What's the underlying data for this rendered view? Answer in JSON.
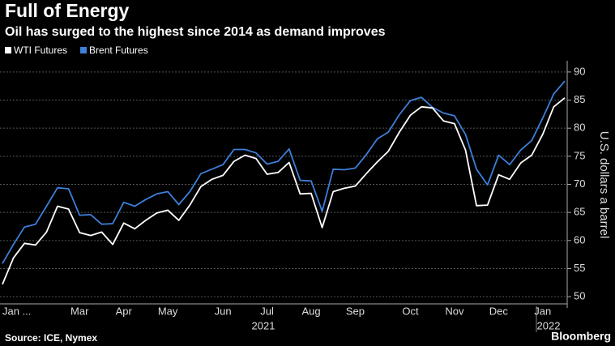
{
  "chart_data": {
    "type": "line",
    "title": "Full of Energy",
    "subtitle": "Oil has surged to the highest since 2014 as demand improves",
    "y_axis_label": "U.S. dollars a barrel",
    "source": "Source: ICE, Nymex",
    "brand": "Bloomberg",
    "years": [
      "2021",
      "2022"
    ],
    "categories": [
      "Jan ...",
      null,
      null,
      null,
      null,
      null,
      null,
      "Mar",
      null,
      null,
      null,
      "Apr",
      null,
      null,
      null,
      "May",
      null,
      null,
      null,
      null,
      "Jun",
      null,
      null,
      null,
      "Jul",
      null,
      null,
      null,
      "Aug",
      null,
      null,
      null,
      "Sep",
      null,
      null,
      null,
      null,
      "Oct",
      null,
      null,
      null,
      "Nov",
      null,
      null,
      null,
      "Dec",
      null,
      null,
      null,
      "Jan",
      null,
      null
    ],
    "series": [
      {
        "name": "WTI Futures",
        "color": "#ffffff",
        "values": [
          52.2,
          56.9,
          59.5,
          59.2,
          61.5,
          66.1,
          65.6,
          61.4,
          60.9,
          61.5,
          59.3,
          63.1,
          62.1,
          63.6,
          64.9,
          65.4,
          63.6,
          66.3,
          69.6,
          70.9,
          71.6,
          74.1,
          75.2,
          74.6,
          71.8,
          72.1,
          73.9,
          68.3,
          68.4,
          62.3,
          68.7,
          69.3,
          69.7,
          71.9,
          74.0,
          75.9,
          79.3,
          82.3,
          83.8,
          83.6,
          81.3,
          80.8,
          76.1,
          66.2,
          66.3,
          71.7,
          70.9,
          73.8,
          75.2,
          78.9,
          83.8,
          85.4
        ]
      },
      {
        "name": "Brent Futures",
        "color": "#3d7fd9",
        "values": [
          55.9,
          59.3,
          62.4,
          62.9,
          66.1,
          69.4,
          69.2,
          64.5,
          64.6,
          62.9,
          63.0,
          66.8,
          66.1,
          67.3,
          68.3,
          68.7,
          66.4,
          68.7,
          71.9,
          72.7,
          73.5,
          76.2,
          76.2,
          75.6,
          73.6,
          74.1,
          76.3,
          70.7,
          70.6,
          65.2,
          72.7,
          72.6,
          72.9,
          75.3,
          78.1,
          79.3,
          82.4,
          84.9,
          85.5,
          83.7,
          82.7,
          82.2,
          78.9,
          72.7,
          69.9,
          75.2,
          73.5,
          76.1,
          77.8,
          81.8,
          86.1,
          88.4
        ]
      }
    ],
    "ylim": [
      48,
      92
    ],
    "yticks": [
      50,
      55,
      60,
      65,
      70,
      75,
      80,
      85,
      90
    ],
    "grid": true
  }
}
